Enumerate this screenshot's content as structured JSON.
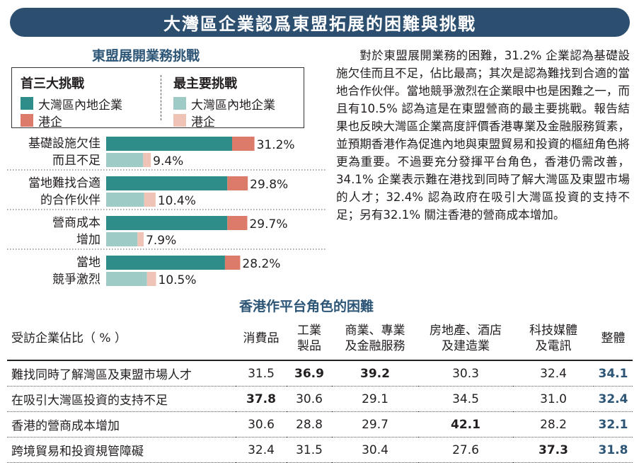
{
  "header": {
    "title": "大灣區企業認爲東盟拓展的困難與挑戰"
  },
  "chart_title": "東盟展開業務挑戰",
  "legend": {
    "top3_label": "首三大挑戰",
    "main_label": "最主要挑戰",
    "entries": [
      "大灣區內地企業",
      "港企"
    ]
  },
  "colors": {
    "top3_gba": "#2e8d88",
    "top3_hk": "#dd7b6b",
    "main_gba": "#9fcbc6",
    "main_hk": "#f0c3b7",
    "accent": "#2c4f70"
  },
  "chart_data": {
    "type": "bar",
    "categories": [
      [
        "基礎設施欠佳",
        "而且不足"
      ],
      [
        "當地難找合適",
        "的合作伙伴"
      ],
      [
        "營商成本",
        "增加"
      ],
      [
        "當地",
        "競爭激烈"
      ]
    ],
    "series": [
      {
        "name": "首三大挑戰",
        "totals": [
          31.2,
          29.8,
          29.7,
          28.2
        ],
        "gba_part": [
          26.5,
          25.5,
          25.5,
          25.0
        ]
      },
      {
        "name": "最主要挑戰",
        "totals": [
          9.4,
          10.4,
          7.9,
          10.5
        ],
        "gba_part": [
          7.8,
          8.0,
          6.6,
          8.6
        ]
      }
    ],
    "value_labels": [
      [
        "31.2%",
        "9.4%"
      ],
      [
        "29.8%",
        "10.4%"
      ],
      [
        "29.7%",
        "7.9%"
      ],
      [
        "28.2%",
        "10.5%"
      ]
    ],
    "xlim": [
      0,
      34
    ]
  },
  "paragraph": "對於東盟展開業務的困難，31.2% 企業認為基礎設施欠佳而且不足，佔比最高；其次是認為難找到合適的當地合作伙伴。當地競爭激烈在企業眼中也是困難之一，而且有10.5% 認為這是在東盟營商的最主要挑戰。報告結果也反映大灣區企業高度評價香港專業及金融服務質素，並預期香港作為促進內地與東盟貿易和投資的樞紐角色將更為重要。不過要充分發揮平台角色，香港仍需改善，34.1% 企業表示難在港找到同時了解大灣區及東盟市場的人才；32.4% 認為政府在吸引大灣區投資的支持不足；另有32.1% 關注香港的營商成本增加。",
  "table": {
    "title": "香港作平台角色的困難",
    "row_header": "受訪企業佔比（ % ）",
    "columns": [
      [
        "消費品"
      ],
      [
        "工業",
        "製品"
      ],
      [
        "商業、專業",
        "及金融服務"
      ],
      [
        "房地產、酒店",
        "及建造業"
      ],
      [
        "科技媒體",
        "及電訊"
      ],
      [
        "整體"
      ]
    ],
    "rows": [
      {
        "label": "難找同時了解灣區及東盟市場人才",
        "values": [
          "31.5",
          "36.9",
          "39.2",
          "30.3",
          "32.4",
          "34.1"
        ]
      },
      {
        "label": "在吸引大灣區投資的支持不足",
        "values": [
          "37.8",
          "30.6",
          "29.1",
          "34.5",
          "31.0",
          "32.4"
        ]
      },
      {
        "label": "香港的營商成本增加",
        "values": [
          "30.6",
          "28.8",
          "29.7",
          "42.1",
          "28.2",
          "32.1"
        ]
      },
      {
        "label": "跨境貿易和投資規管障礙",
        "values": [
          "32.4",
          "31.5",
          "30.4",
          "27.6",
          "37.3",
          "31.8"
        ]
      }
    ],
    "bold_cells": [
      [
        0,
        1
      ],
      [
        0,
        2
      ],
      [
        1,
        0
      ],
      [
        2,
        3
      ],
      [
        3,
        4
      ]
    ]
  }
}
